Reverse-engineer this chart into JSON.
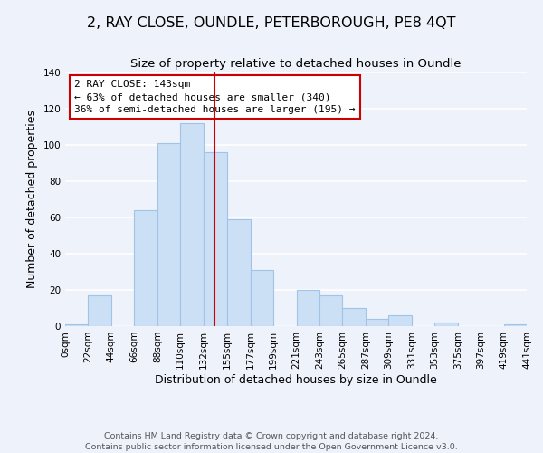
{
  "title": "2, RAY CLOSE, OUNDLE, PETERBOROUGH, PE8 4QT",
  "subtitle": "Size of property relative to detached houses in Oundle",
  "xlabel": "Distribution of detached houses by size in Oundle",
  "ylabel": "Number of detached properties",
  "bar_edges": [
    0,
    22,
    44,
    66,
    88,
    110,
    132,
    155,
    177,
    199,
    221,
    243,
    265,
    287,
    309,
    331,
    353,
    375,
    397,
    419,
    441
  ],
  "bar_heights": [
    1,
    17,
    0,
    64,
    101,
    112,
    96,
    59,
    31,
    0,
    20,
    17,
    10,
    4,
    6,
    0,
    2,
    0,
    0,
    1
  ],
  "bar_color": "#cce0f5",
  "bar_edgecolor": "#a0c4e8",
  "vline_x": 143,
  "vline_color": "#cc0000",
  "annotation_title": "2 RAY CLOSE: 143sqm",
  "annotation_line1": "← 63% of detached houses are smaller (340)",
  "annotation_line2": "36% of semi-detached houses are larger (195) →",
  "annotation_box_facecolor": "#ffffff",
  "annotation_box_edgecolor": "#cc0000",
  "xlim": [
    0,
    441
  ],
  "ylim": [
    0,
    140
  ],
  "yticks": [
    0,
    20,
    40,
    60,
    80,
    100,
    120,
    140
  ],
  "xtick_labels": [
    "0sqm",
    "22sqm",
    "44sqm",
    "66sqm",
    "88sqm",
    "110sqm",
    "132sqm",
    "155sqm",
    "177sqm",
    "199sqm",
    "221sqm",
    "243sqm",
    "265sqm",
    "287sqm",
    "309sqm",
    "331sqm",
    "353sqm",
    "375sqm",
    "397sqm",
    "419sqm",
    "441sqm"
  ],
  "xtick_positions": [
    0,
    22,
    44,
    66,
    88,
    110,
    132,
    155,
    177,
    199,
    221,
    243,
    265,
    287,
    309,
    331,
    353,
    375,
    397,
    419,
    441
  ],
  "footer_line1": "Contains HM Land Registry data © Crown copyright and database right 2024.",
  "footer_line2": "Contains public sector information licensed under the Open Government Licence v3.0.",
  "bg_color": "#eef2fb",
  "grid_color": "#ffffff",
  "title_fontsize": 11.5,
  "subtitle_fontsize": 9.5,
  "axis_label_fontsize": 9,
  "tick_fontsize": 7.5,
  "footer_fontsize": 6.8,
  "annot_fontsize": 8.0
}
